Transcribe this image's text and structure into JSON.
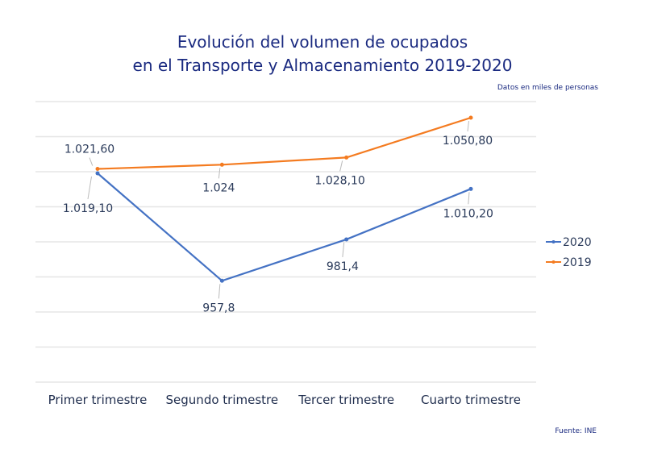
{
  "chart_data": {
    "type": "line",
    "title_line1": "Evolución del volumen de ocupados",
    "title_line2": "en el Transporte y Almacenamiento 2019-2020",
    "note": "Datos en miles de personas",
    "source": "Fuente: INE",
    "categories": [
      "Primer trimestre",
      "Segundo trimestre",
      "Tercer trimestre",
      "Cuarto trimestre"
    ],
    "ylim": [
      900,
      1060
    ],
    "ystep": 20,
    "grid": true,
    "legend_position": "right",
    "series": [
      {
        "name": "2020",
        "color": "#4472c4",
        "values": [
          1019.1,
          957.8,
          981.4,
          1010.2
        ],
        "labels": [
          "1.019,10",
          "957,8",
          "981,4",
          "1.010,20"
        ]
      },
      {
        "name": "2019",
        "color": "#f47b20",
        "values": [
          1021.6,
          1024.0,
          1028.1,
          1050.8
        ],
        "labels": [
          "1.021,60",
          "1.024",
          "1.028,10",
          "1.050,80"
        ]
      }
    ]
  }
}
